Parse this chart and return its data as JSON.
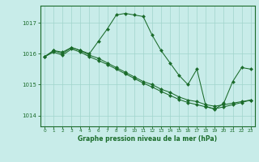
{
  "background_color": "#c8ece9",
  "grid_color": "#a0d4cc",
  "line_color": "#1a6b2a",
  "marker_color": "#1a6b2a",
  "title": "Graphe pression niveau de la mer (hPa)",
  "xlabel_ticks": [
    0,
    1,
    2,
    3,
    4,
    5,
    6,
    7,
    8,
    9,
    10,
    11,
    12,
    13,
    14,
    15,
    16,
    17,
    18,
    19,
    20,
    21,
    22,
    23
  ],
  "yticks": [
    1014,
    1015,
    1016,
    1017
  ],
  "ylim": [
    1013.65,
    1017.55
  ],
  "xlim": [
    -0.5,
    23.5
  ],
  "series": [
    [
      1015.9,
      1016.1,
      1016.0,
      1016.2,
      1016.1,
      1016.0,
      1016.4,
      1016.8,
      1017.25,
      1017.3,
      1017.25,
      1017.2,
      1016.6,
      1016.1,
      1015.7,
      1015.3,
      1015.0,
      1015.5,
      1014.3,
      1014.2,
      1014.4,
      1015.1,
      1015.55,
      1015.5
    ],
    [
      1015.9,
      1016.1,
      1016.05,
      1016.2,
      1016.1,
      1015.95,
      1015.85,
      1015.7,
      1015.55,
      1015.4,
      1015.25,
      1015.1,
      1015.0,
      1014.85,
      1014.75,
      1014.6,
      1014.5,
      1014.45,
      1014.35,
      1014.3,
      1014.35,
      1014.4,
      1014.45,
      1014.5
    ],
    [
      1015.9,
      1016.05,
      1015.95,
      1016.15,
      1016.05,
      1015.9,
      1015.78,
      1015.65,
      1015.5,
      1015.35,
      1015.2,
      1015.05,
      1014.92,
      1014.78,
      1014.65,
      1014.52,
      1014.42,
      1014.35,
      1014.28,
      1014.22,
      1014.28,
      1014.35,
      1014.42,
      1014.5
    ]
  ]
}
